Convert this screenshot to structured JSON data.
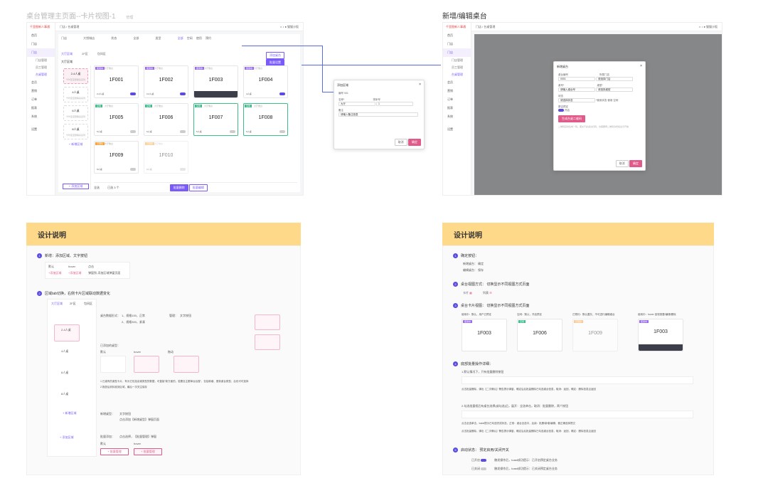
{
  "titles": {
    "left": "桌台管理主页面--卡片视图-1",
    "left_tag": "管理",
    "right": "新增/编辑桌台"
  },
  "app": {
    "brand": "千里图新人事通",
    "user": "猫猫沙饭",
    "breadcrumb": "门店 / 台桌管理",
    "sidebar": [
      "首页",
      "门店",
      "门店",
      "门店管理",
      "员工管理",
      "台桌管理",
      "会员",
      "营销",
      "订单",
      "报表",
      "系统",
      "设置"
    ],
    "filter": [
      "门店",
      "大悦城店",
      "状态",
      "全部",
      "类型",
      "全部",
      "空闲",
      "使用",
      "预约"
    ],
    "tabs": [
      "大厅区域",
      "2F区",
      "包间区"
    ],
    "area_title": "大厅区域",
    "add_area": "+ 添加区域",
    "add_table": "添加桌台",
    "batch": "批量设置",
    "areas": [
      {
        "name": "2-4人桌",
        "sub": "千叶区至愿联系系列"
      },
      {
        "name": "4人桌",
        "sub": "千叶区至愿联系系列"
      },
      {
        "name": "6人桌",
        "sub": "千叶区至愿联系系列"
      },
      {
        "name": "8人桌",
        "sub": "千叶区至愿联系系列"
      }
    ],
    "new_area": "+ 新增区域",
    "cards": [
      {
        "tag": "使用中",
        "type": "大厅散台",
        "name": "1F001",
        "seat": "2-4人桌",
        "tagc": "purple",
        "on": true
      },
      {
        "tag": "使用中",
        "type": "大厅散台",
        "name": "1F002",
        "seat": "2-4人桌",
        "tagc": "purple",
        "on": true
      },
      {
        "tag": "使用中",
        "type": "大厅散台",
        "name": "1F003",
        "seat": "2-4人桌",
        "tagc": "purple",
        "on": true
      },
      {
        "tag": "使用中",
        "type": "大厅散台",
        "name": "1F004",
        "seat": "4人桌",
        "tagc": "purple",
        "on": true
      },
      {
        "tag": "空闲",
        "type": "大厅散台",
        "name": "1F005",
        "seat": "5人桌",
        "tagc": "green",
        "on": false
      },
      {
        "tag": "空闲",
        "type": "大厅散台",
        "name": "1F006",
        "seat": "6人桌",
        "tagc": "green",
        "on": false
      },
      {
        "tag": "空闲",
        "type": "大厅散台",
        "name": "1F007",
        "seat": "5人桌",
        "tagc": "green",
        "on": false
      },
      {
        "tag": "空闲",
        "type": "大厅散台",
        "name": "1F008",
        "seat": "6人桌",
        "tagc": "green",
        "on": false
      },
      {
        "tag": "已预约",
        "type": "大厅散台",
        "name": "1F009",
        "seat": "8人桌",
        "tagc": "orange",
        "on": false
      },
      {
        "tag": "已预约",
        "type": "大厅散台",
        "name": "1F010",
        "seat": "8人桌",
        "tagc": "orange",
        "on": false
      }
    ],
    "bottom": [
      "全选",
      "已选 3 个",
      "批量删除",
      "批量编辑"
    ]
  },
  "modal_area": {
    "title": "添加区域",
    "rows": [
      "编号",
      "001",
      "名称*",
      "大厅",
      "排序号",
      "1",
      "备注",
      "请输入备注信息"
    ],
    "cancel": "取消",
    "ok": "确定"
  },
  "modal_table": {
    "title": "新增桌台",
    "rows": [
      "桌台编号",
      "0001",
      "所属门店",
      "请选择门店",
      "桌号*",
      "请输入桌台号",
      "桌型*",
      "请选择桌型",
      "状态",
      "请选择状态",
      "*使用状态",
      "使用",
      "空闲",
      "是否预定",
      "开启"
    ],
    "tip": "二维码自动生成一码，需关于此桌台扫码，也需要两二维码请增加出示开放",
    "qr": "生成台桌二维码",
    "cancel": "取消",
    "ok": "确定"
  },
  "design": {
    "heading": "设计说明",
    "left": [
      "新增：添加区域、文字按钮",
      "默认",
      "hover",
      "点击",
      "+添加区域",
      "+添加区域",
      "弹窗到-添加区域弹窗页面",
      "区域tab切换，右侧卡片区域联动数据变化",
      "桌台数据形式：",
      "1、规格100，正常",
      "2、规格300，紧凑",
      "管理：",
      "文字按钮",
      "已添加的桌型：",
      "默认",
      "hover",
      "拖动",
      "1.已桌有的桌型卡片，有为它包括该桌类型的数据，可直接\"新方面的，若要自主跟单台后做\"，包括新增、更新桌台类型，后也可可选择",
      "2.拖放后到标准到区域，最后一次关注保存",
      "新增桌型：",
      "文字按钮",
      "点击添加【新增桌型】弹窗页面",
      "批量添加：",
      "点击选择，【批量管理】弹窗",
      "默认",
      "hover",
      "+ 批量管理",
      "+ 批量管理",
      "点击",
      "下拉桌台区及数据的\"删除\"里右选项"
    ],
    "right": [
      "确定按钮：",
      "新增桌台：",
      "确定",
      "编辑桌台：",
      "保存",
      "桌台视图方式：",
      "切换显示不同视图方式页面",
      "卡片",
      "列表",
      "桌台卡片视图：",
      "切换显示不同视图方式页面",
      "使用中：默认，用户已预定",
      "空闲：默认，开启预定",
      "已预约：默认置灰，不可进行编辑桌台",
      "使用中：hover 呈现首要/编辑/删除",
      "底部批量操作详细：",
      "1.默认情况下，只有批量删除按钮",
      "点击批量删除，弹出【二次确认】警告提示弹窗，确定后后批量删除已勾选桌台信息，取消：返回，确定：删除信息且返回",
      "2.勾选批量框后有桌台选择(或勾选)后，展开：全选单击，取消：批量删除，两个按钮",
      "点击全选单击，toast提示已勾选完成状态，正常：桌台全选中，后续：批删/新增/编辑，都正确选择提交",
      "点击批量删除，弹出【二次确认】警告提示弹窗，确定后后批量删除已勾选桌台信息，取消：返回，确定：删除信息且返回",
      "启动状态：",
      "预定启用/关闭开关",
      "已开启",
      "触发操作后，toast成功提示：已开启预定桌台业务",
      "已关闭",
      "触发操作后，toast成功提示：已关闭预定桌台业务"
    ]
  },
  "colors": {
    "accent": "#5a4ce0",
    "purple": "#9b6be8",
    "green": "#3cbf8a",
    "orange": "#f5a03a",
    "yellow": "#ffd98a"
  }
}
